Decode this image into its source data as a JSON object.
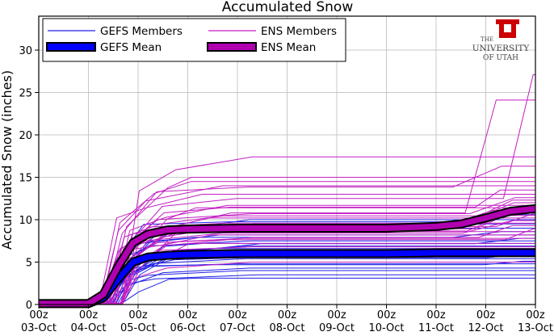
{
  "chart_data": {
    "type": "line",
    "title": "Accumulated Snow",
    "ylabel": "Accumulated Snow (inches)",
    "xlabel": "",
    "ylim": [
      0,
      34
    ],
    "x_ticks": [
      "00z\n03-Oct",
      "00z\n04-Oct",
      "00z\n05-Oct",
      "00z\n06-Oct",
      "00z\n07-Oct",
      "00z\n08-Oct",
      "00z\n09-Oct",
      "00z\n10-Oct",
      "00z\n11-Oct",
      "00z\n12-Oct",
      "00z\n13-Oct"
    ],
    "x_tick_days": [
      0,
      1,
      2,
      3,
      4,
      5,
      6,
      7,
      8,
      9,
      10
    ],
    "y_ticks": [
      0,
      5,
      10,
      15,
      20,
      25,
      30
    ],
    "grid": true,
    "legend_placement": "top-left",
    "legend": [
      {
        "label": "GEFS Members",
        "style": "thin",
        "color": "#1f1fe6"
      },
      {
        "label": "ENS Members",
        "style": "thin",
        "color": "#c21fc2"
      },
      {
        "label": "GEFS Mean",
        "style": "thick",
        "color": "#0000ff"
      },
      {
        "label": "ENS Mean",
        "style": "thick",
        "color": "#b000b0"
      }
    ],
    "gefs_members_final": [
      3.1,
      3.5,
      4.0,
      4.3,
      4.8,
      5.1,
      5.4,
      5.7,
      6.0,
      6.3,
      6.6,
      6.9,
      7.2,
      7.5,
      7.8,
      8.2,
      8.6,
      9.0,
      9.5,
      10.0,
      10.6
    ],
    "ens_members_final": [
      5.0,
      6.0,
      6.8,
      7.2,
      7.8,
      8.2,
      8.6,
      9.0,
      9.3,
      9.6,
      9.9,
      10.2,
      10.5,
      10.8,
      11.1,
      11.4,
      11.7,
      12.0,
      12.3,
      12.6,
      13.0,
      13.5,
      14.0,
      14.5,
      15.0,
      16.3,
      17.4,
      24.1,
      27.1
    ],
    "gefs_mean": {
      "x": [
        0,
        1.0,
        1.3,
        1.6,
        1.9,
        2.2,
        2.6,
        3.0,
        4.0,
        5.0,
        6.0,
        7.0,
        8.0,
        8.5,
        9.0,
        9.5,
        10.0
      ],
      "y": [
        0.1,
        0.1,
        0.8,
        3.0,
        5.0,
        5.6,
        5.8,
        5.9,
        6.0,
        6.0,
        6.0,
        6.0,
        6.1,
        6.1,
        6.1,
        6.1,
        6.1
      ]
    },
    "ens_mean": {
      "x": [
        0,
        1.0,
        1.3,
        1.6,
        1.9,
        2.2,
        2.6,
        3.0,
        4.0,
        5.0,
        6.0,
        7.0,
        8.0,
        8.5,
        9.0,
        9.5,
        10.0
      ],
      "y": [
        0.1,
        0.1,
        1.2,
        4.5,
        7.3,
        8.3,
        8.8,
        8.9,
        9.0,
        9.0,
        9.0,
        9.0,
        9.2,
        9.5,
        10.2,
        11.0,
        11.3
      ]
    }
  },
  "legend_labels": {
    "gefs_members": "GEFS Members",
    "ens_members": "ENS Members",
    "gefs_mean": "GEFS Mean",
    "ens_mean": "ENS Mean"
  },
  "logo": {
    "the": "THE",
    "university": "UNIVERSITY",
    "of_utah": "OF UTAH",
    "color": "#cc0000"
  },
  "colors": {
    "gefs": "#1f1fe6",
    "ens": "#c21fc2",
    "gefs_mean": "#0000ff",
    "ens_mean": "#b000b0",
    "mean_outline": "#000000"
  }
}
